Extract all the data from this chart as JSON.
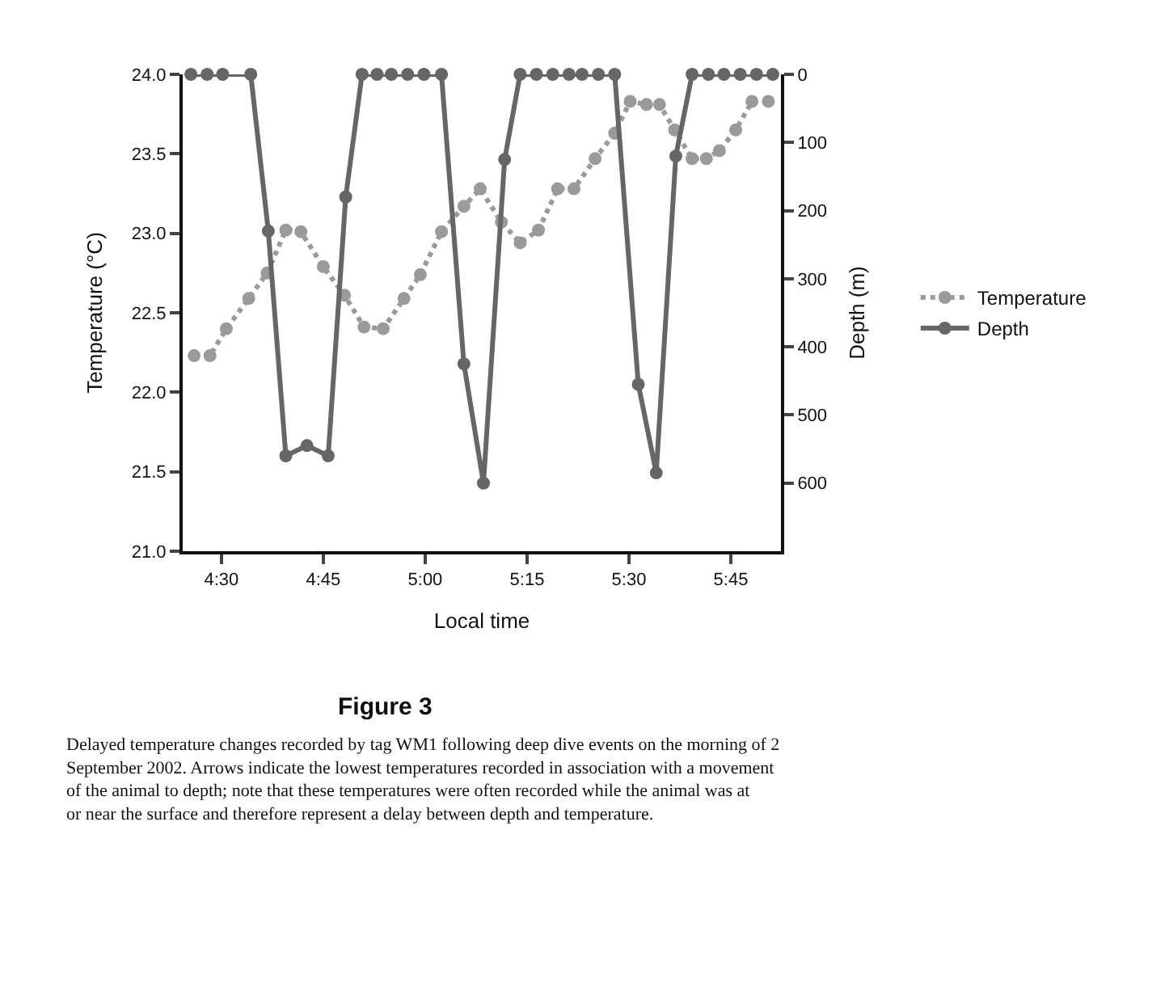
{
  "chart_data": {
    "type": "line",
    "xlabel": "Local time",
    "ylabel": "Temperature (°C)",
    "y2label": "Depth (m)",
    "xlim": [
      4.405,
      5.873
    ],
    "xticks": [
      {
        "value": 4.5,
        "label": "4:30"
      },
      {
        "value": 4.75,
        "label": "4:45"
      },
      {
        "value": 5.0,
        "label": "5:00"
      },
      {
        "value": 5.25,
        "label": "5:15"
      },
      {
        "value": 5.5,
        "label": "5:30"
      },
      {
        "value": 5.75,
        "label": "5:45"
      }
    ],
    "ylim": [
      21.0,
      24.0
    ],
    "yticks": [
      {
        "value": 21,
        "label": "21.0"
      },
      21.5,
      {
        "value": 22,
        "label": "22.0"
      },
      22.5,
      {
        "value": 23,
        "label": "23.0"
      },
      23.5,
      {
        "value": 24,
        "label": "24.0"
      }
    ],
    "y2lim": [
      700,
      0
    ],
    "y2ticks": [
      0,
      100,
      200,
      300,
      400,
      500,
      600
    ],
    "legend": "right",
    "marker": "circle",
    "series": [
      {
        "name": "Temperature",
        "color": "#9a9a9a",
        "line_style": "dotted",
        "x": [
          4.433,
          4.472,
          4.512,
          4.567,
          4.612,
          4.658,
          4.695,
          4.75,
          4.802,
          4.85,
          4.897,
          4.948,
          4.988,
          5.04,
          5.095,
          5.135,
          5.187,
          5.233,
          5.278,
          5.325,
          5.365,
          5.417,
          5.465,
          5.503,
          5.543,
          5.575,
          5.612,
          5.655,
          5.69,
          5.722,
          5.762,
          5.802,
          5.842
        ],
        "values": [
          22.23,
          22.23,
          22.4,
          22.59,
          22.75,
          23.02,
          23.01,
          22.79,
          22.61,
          22.41,
          22.4,
          22.59,
          22.74,
          23.01,
          23.17,
          23.28,
          23.07,
          22.94,
          23.02,
          23.28,
          23.28,
          23.47,
          23.63,
          23.83,
          23.81,
          23.81,
          23.65,
          23.47,
          23.47,
          23.52,
          23.65,
          23.83,
          23.83
        ]
      },
      {
        "name": "Depth",
        "color": "#666666",
        "line_style": "solid",
        "axis": "y2",
        "x": [
          4.425,
          4.465,
          4.503,
          4.572,
          4.615,
          4.658,
          4.71,
          4.762,
          4.805,
          4.845,
          4.882,
          4.917,
          4.957,
          4.997,
          5.04,
          5.095,
          5.143,
          5.195,
          5.233,
          5.273,
          5.313,
          5.353,
          5.385,
          5.425,
          5.465,
          5.523,
          5.567,
          5.615,
          5.655,
          5.695,
          5.733,
          5.773,
          5.813,
          5.853
        ],
        "values": [
          0,
          0,
          0,
          0,
          230,
          560,
          545,
          560,
          180,
          0,
          0,
          0,
          0,
          0,
          0,
          425,
          600,
          125,
          0,
          0,
          0,
          0,
          0,
          0,
          0,
          455,
          585,
          120,
          0,
          0,
          0,
          0,
          0,
          0
        ]
      }
    ],
    "annotations": [
      "Figure 3",
      "Delayed temperature changes recorded by tag WM1 following deep dive events on the morning of 2 September 2002. Arrows indicate the lowest temperatures recorded in association with a movement of the animal to depth; note that these temperatures were often recorded while the animal was at or near the surface and therefore represent a delay between depth and temperature."
    ]
  }
}
